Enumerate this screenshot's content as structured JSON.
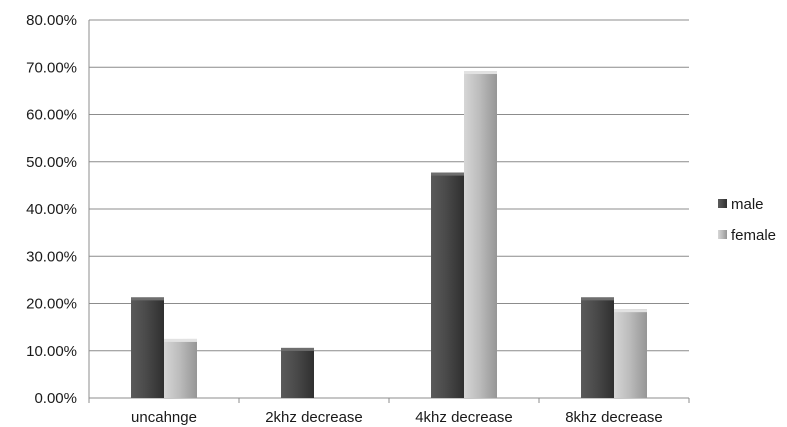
{
  "chart_data": {
    "type": "bar",
    "title": "",
    "xlabel": "",
    "ylabel": "",
    "categories": [
      "uncahnge",
      "2khz decrease",
      "4khz decrease",
      "8khz decrease"
    ],
    "series": [
      {
        "name": "male",
        "values": [
          21.3,
          10.6,
          47.7,
          21.3
        ],
        "color": "#4a4a4a"
      },
      {
        "name": "female",
        "values": [
          12.5,
          0.0,
          69.2,
          18.8
        ],
        "color": "#b8b8b8"
      }
    ],
    "ylim": [
      0,
      80
    ],
    "y_ticks": [
      "0.00%",
      "10.00%",
      "20.00%",
      "30.00%",
      "40.00%",
      "50.00%",
      "60.00%",
      "70.00%",
      "80.00%"
    ],
    "grid": true,
    "legend_position": "right",
    "style": "3d-shaded columns"
  }
}
